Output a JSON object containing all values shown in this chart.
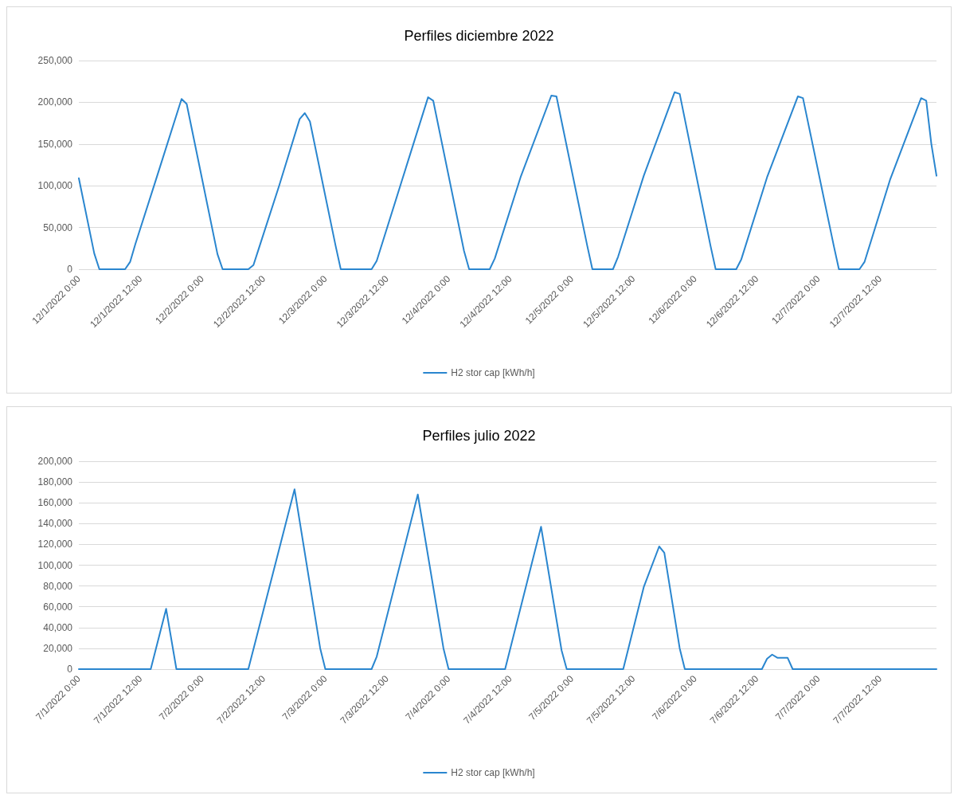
{
  "chart_data": [
    {
      "type": "line",
      "title": "Perfiles diciembre 2022",
      "xlim": [
        "2022-12-01T00:00",
        "2022-12-07T23:00"
      ],
      "xticks": [
        {
          "value": "2022-12-01T00:00",
          "label": "12/1/2022 0:00"
        },
        {
          "value": "2022-12-01T12:00",
          "label": "12/1/2022 12:00"
        },
        {
          "value": "2022-12-02T00:00",
          "label": "12/2/2022 0:00"
        },
        {
          "value": "2022-12-02T12:00",
          "label": "12/2/2022 12:00"
        },
        {
          "value": "2022-12-03T00:00",
          "label": "12/3/2022 0:00"
        },
        {
          "value": "2022-12-03T12:00",
          "label": "12/3/2022 12:00"
        },
        {
          "value": "2022-12-04T00:00",
          "label": "12/4/2022 0:00"
        },
        {
          "value": "2022-12-04T12:00",
          "label": "12/4/2022 12:00"
        },
        {
          "value": "2022-12-05T00:00",
          "label": "12/5/2022 0:00"
        },
        {
          "value": "2022-12-05T12:00",
          "label": "12/5/2022 12:00"
        },
        {
          "value": "2022-12-06T00:00",
          "label": "12/6/2022 0:00"
        },
        {
          "value": "2022-12-06T12:00",
          "label": "12/6/2022 12:00"
        },
        {
          "value": "2022-12-07T00:00",
          "label": "12/7/2022 0:00"
        },
        {
          "value": "2022-12-07T12:00",
          "label": "12/7/2022 12:00"
        }
      ],
      "ylim": [
        0,
        250000
      ],
      "yticks": [
        0,
        {
          "value": 50000,
          "label": "50,000"
        },
        {
          "value": 100000,
          "label": "100,000"
        },
        {
          "value": 150000,
          "label": "150,000"
        },
        {
          "value": 200000,
          "label": "200,000"
        },
        {
          "value": 250000,
          "label": "250,000"
        }
      ],
      "grid": "y",
      "legend": "bottom",
      "marker": "none",
      "line_style": "solid",
      "series": [
        {
          "name": "H2 stor cap [kWh/h]",
          "color": "#2a86cf",
          "x": [
            "2022-12-01T00:00",
            "2022-12-01T03:00",
            "2022-12-01T04:00",
            "2022-12-01T09:00",
            "2022-12-01T10:00",
            "2022-12-01T11:00",
            "2022-12-01T15:00",
            "2022-12-01T20:00",
            "2022-12-01T21:00",
            "2022-12-02T00:00",
            "2022-12-02T03:00",
            "2022-12-02T04:00",
            "2022-12-02T09:00",
            "2022-12-02T10:00",
            "2022-12-02T11:00",
            "2022-12-02T15:00",
            "2022-12-02T19:00",
            "2022-12-02T20:00",
            "2022-12-02T21:00",
            "2022-12-03T02:00",
            "2022-12-03T03:00",
            "2022-12-03T09:00",
            "2022-12-03T10:00",
            "2022-12-03T15:00",
            "2022-12-03T20:00",
            "2022-12-03T21:00",
            "2022-12-04T03:00",
            "2022-12-04T04:00",
            "2022-12-04T08:00",
            "2022-12-04T09:00",
            "2022-12-04T14:00",
            "2022-12-04T20:00",
            "2022-12-04T21:00",
            "2022-12-05T03:00",
            "2022-12-05T04:00",
            "2022-12-05T08:00",
            "2022-12-05T09:00",
            "2022-12-05T14:00",
            "2022-12-05T20:00",
            "2022-12-05T21:00",
            "2022-12-06T03:00",
            "2022-12-06T04:00",
            "2022-12-06T08:00",
            "2022-12-06T09:00",
            "2022-12-06T14:00",
            "2022-12-06T20:00",
            "2022-12-06T21:00",
            "2022-12-07T03:00",
            "2022-12-07T04:00",
            "2022-12-07T08:00",
            "2022-12-07T09:00",
            "2022-12-07T14:00",
            "2022-12-07T20:00",
            "2022-12-07T21:00",
            "2022-12-07T22:00",
            "2022-12-07T23:00"
          ],
          "values": [
            109000,
            19000,
            0,
            0,
            9000,
            30000,
            107000,
            204000,
            198000,
            108000,
            18000,
            0,
            0,
            5000,
            24000,
            100000,
            180000,
            187000,
            177000,
            28000,
            0,
            0,
            10000,
            108000,
            206000,
            202000,
            22000,
            0,
            0,
            13000,
            110000,
            208000,
            207000,
            28000,
            0,
            0,
            15000,
            112000,
            212000,
            210000,
            28000,
            0,
            0,
            12000,
            110000,
            207000,
            205000,
            28000,
            0,
            0,
            9000,
            108000,
            205000,
            202000,
            150000,
            112000
          ]
        }
      ]
    },
    {
      "type": "line",
      "title": "Perfiles julio 2022",
      "xlim": [
        "2022-07-01T00:00",
        "2022-07-07T23:00"
      ],
      "xticks": [
        {
          "value": "2022-07-01T00:00",
          "label": "7/1/2022 0:00"
        },
        {
          "value": "2022-07-01T12:00",
          "label": "7/1/2022 12:00"
        },
        {
          "value": "2022-07-02T00:00",
          "label": "7/2/2022 0:00"
        },
        {
          "value": "2022-07-02T12:00",
          "label": "7/2/2022 12:00"
        },
        {
          "value": "2022-07-03T00:00",
          "label": "7/3/2022 0:00"
        },
        {
          "value": "2022-07-03T12:00",
          "label": "7/3/2022 12:00"
        },
        {
          "value": "2022-07-04T00:00",
          "label": "7/4/2022 0:00"
        },
        {
          "value": "2022-07-04T12:00",
          "label": "7/4/2022 12:00"
        },
        {
          "value": "2022-07-05T00:00",
          "label": "7/5/2022 0:00"
        },
        {
          "value": "2022-07-05T12:00",
          "label": "7/5/2022 12:00"
        },
        {
          "value": "2022-07-06T00:00",
          "label": "7/6/2022 0:00"
        },
        {
          "value": "2022-07-06T12:00",
          "label": "7/6/2022 12:00"
        },
        {
          "value": "2022-07-07T00:00",
          "label": "7/7/2022 0:00"
        },
        {
          "value": "2022-07-07T12:00",
          "label": "7/7/2022 12:00"
        }
      ],
      "ylim": [
        0,
        200000
      ],
      "yticks": [
        0,
        {
          "value": 20000,
          "label": "20,000"
        },
        {
          "value": 40000,
          "label": "40,000"
        },
        {
          "value": 60000,
          "label": "60,000"
        },
        {
          "value": 80000,
          "label": "80,000"
        },
        {
          "value": 100000,
          "label": "100,000"
        },
        {
          "value": 120000,
          "label": "120,000"
        },
        {
          "value": 140000,
          "label": "140,000"
        },
        {
          "value": 160000,
          "label": "160,000"
        },
        {
          "value": 180000,
          "label": "180,000"
        },
        {
          "value": 200000,
          "label": "200,000"
        }
      ],
      "grid": "y",
      "legend": "bottom",
      "marker": "none",
      "line_style": "solid",
      "series": [
        {
          "name": "H2 stor cap [kWh/h]",
          "color": "#2a86cf",
          "x": [
            "2022-07-01T00:00",
            "2022-07-01T14:00",
            "2022-07-01T17:00",
            "2022-07-01T19:00",
            "2022-07-02T09:00",
            "2022-07-02T18:00",
            "2022-07-02T23:00",
            "2022-07-03T00:00",
            "2022-07-03T09:00",
            "2022-07-03T10:00",
            "2022-07-03T18:00",
            "2022-07-03T23:00",
            "2022-07-04T00:00",
            "2022-07-04T11:00",
            "2022-07-04T18:00",
            "2022-07-04T22:00",
            "2022-07-04T23:00",
            "2022-07-05T10:00",
            "2022-07-05T14:00",
            "2022-07-05T17:00",
            "2022-07-05T18:00",
            "2022-07-05T21:00",
            "2022-07-05T22:00",
            "2022-07-06T13:00",
            "2022-07-06T14:00",
            "2022-07-06T15:00",
            "2022-07-06T16:00",
            "2022-07-06T18:00",
            "2022-07-06T19:00",
            "2022-07-07T23:00"
          ],
          "values": [
            0,
            0,
            58000,
            0,
            0,
            173000,
            20000,
            0,
            0,
            12000,
            168000,
            20000,
            0,
            0,
            137000,
            18000,
            0,
            0,
            79000,
            118000,
            112000,
            20000,
            0,
            0,
            10000,
            14000,
            11000,
            11000,
            0,
            0
          ]
        }
      ]
    }
  ]
}
